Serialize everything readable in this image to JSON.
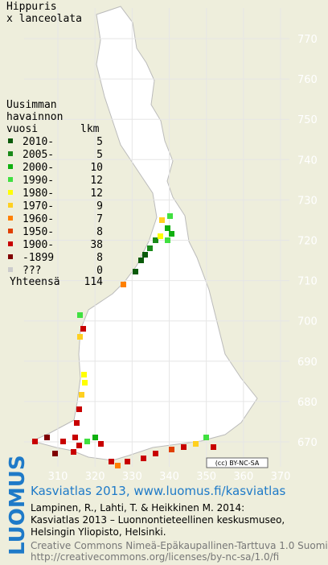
{
  "title": [
    "Hippuris",
    "x lanceolata"
  ],
  "legend": {
    "header": [
      "Uusimman",
      "havainnon",
      "vuosi",
      "lkm"
    ],
    "rows": [
      {
        "label": "2010-",
        "count": 5,
        "color": "#0a5a0a"
      },
      {
        "label": "2005-",
        "count": 5,
        "color": "#1a8a1a"
      },
      {
        "label": "2000-",
        "count": 10,
        "color": "#10b010"
      },
      {
        "label": "1990-",
        "count": 12,
        "color": "#40e040"
      },
      {
        "label": "1980-",
        "count": 12,
        "color": "#ffff00"
      },
      {
        "label": "1970-",
        "count": 9,
        "color": "#ffd020"
      },
      {
        "label": "1960-",
        "count": 7,
        "color": "#ff8000"
      },
      {
        "label": "1950-",
        "count": 8,
        "color": "#e04000"
      },
      {
        "label": "1900-",
        "count": 38,
        "color": "#c80000"
      },
      {
        "label": "-1899",
        "count": 8,
        "color": "#800000"
      },
      {
        "label": "???",
        "count": 0,
        "color": "#cccccc"
      }
    ],
    "total": {
      "label": "Yhteensä",
      "value": 114
    }
  },
  "grid": {
    "y_labels": [
      770,
      760,
      750,
      740,
      730,
      720,
      710,
      700,
      690,
      680,
      670
    ],
    "x_labels": [
      310,
      320,
      330,
      340,
      350,
      360,
      370
    ]
  },
  "badge": "(cc) BY-NC-SA",
  "logo": "LUOMUS",
  "footer": {
    "link": "Kasviatlas 2013, www.luomus.fi/kasviatlas",
    "citation": [
      "Lampinen, R., Lahti, T. & Heikkinen M. 2014:",
      "Kasviatlas 2013 – Luonnontieteellinen keskusmuseo,",
      "Helsingin Yliopisto, Helsinki."
    ],
    "license": [
      "Creative Commons Nimeä-Epäkaupallinen-Tarttuva 1.0 Suomi",
      "http://creativecommons.org/licenses/by-nc-sa/1.0/fi"
    ]
  }
}
